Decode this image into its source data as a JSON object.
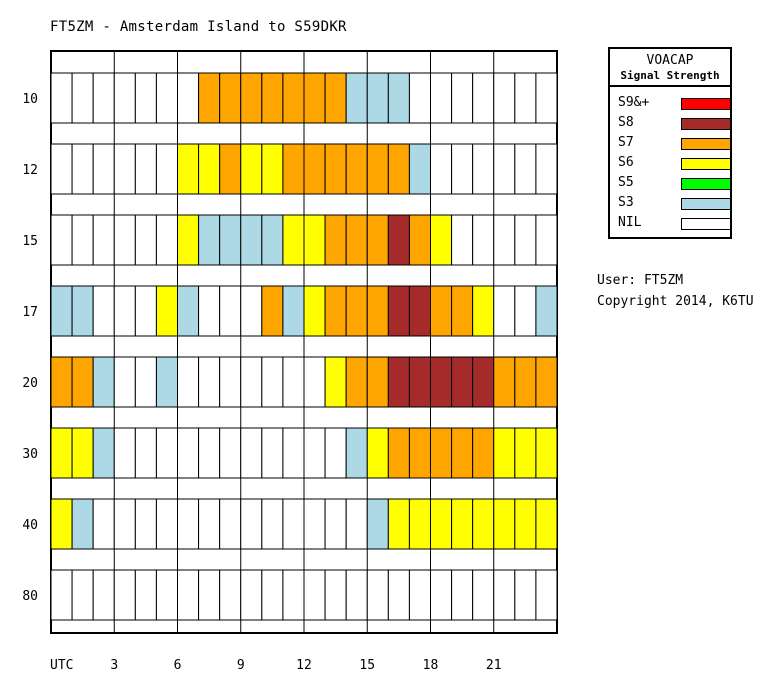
{
  "title": "FT5ZM - Amsterdam Island to S59DKR",
  "legend": {
    "title": "VOACAP",
    "subtitle": "Signal Strength",
    "items": [
      {
        "label": "S9&+",
        "color": "#ff0000"
      },
      {
        "label": "S8",
        "color": "#a52a2a"
      },
      {
        "label": "S7",
        "color": "#ffa500"
      },
      {
        "label": "S6",
        "color": "#ffff00"
      },
      {
        "label": "S5",
        "color": "#00ff00"
      },
      {
        "label": "S3",
        "color": "#add8e6"
      },
      {
        "label": "NIL",
        "color": "#ffffff"
      }
    ]
  },
  "user_line": "User: FT5ZM",
  "copyright_line": "Copyright 2014, K6TU",
  "chart_data": {
    "type": "heatmap",
    "title": "FT5ZM - Amsterdam Island to S59DKR",
    "xlabel": "UTC",
    "x_ticks": [
      "3",
      "6",
      "9",
      "12",
      "15",
      "18",
      "21"
    ],
    "hours": [
      0,
      1,
      2,
      3,
      4,
      5,
      6,
      7,
      8,
      9,
      10,
      11,
      12,
      13,
      14,
      15,
      16,
      17,
      18,
      19,
      20,
      21,
      22,
      23
    ],
    "bands": [
      "10",
      "12",
      "15",
      "17",
      "20",
      "30",
      "40",
      "80"
    ],
    "levels": [
      "NIL",
      "S3",
      "S5",
      "S6",
      "S7",
      "S8",
      "S9&+"
    ],
    "colors": {
      "NIL": "#ffffff",
      "S3": "#add8e6",
      "S5": "#00ff00",
      "S6": "#ffff00",
      "S7": "#ffa500",
      "S8": "#a52a2a",
      "S9&+": "#ff0000"
    },
    "values": [
      [
        "NIL",
        "NIL",
        "NIL",
        "NIL",
        "NIL",
        "NIL",
        "NIL",
        "S7",
        "S7",
        "S7",
        "S7",
        "S7",
        "S7",
        "S7",
        "S3",
        "S3",
        "S3",
        "NIL",
        "NIL",
        "NIL",
        "NIL",
        "NIL",
        "NIL",
        "NIL"
      ],
      [
        "NIL",
        "NIL",
        "NIL",
        "NIL",
        "NIL",
        "NIL",
        "S6",
        "S6",
        "S7",
        "S6",
        "S6",
        "S7",
        "S7",
        "S7",
        "S7",
        "S7",
        "S7",
        "S3",
        "NIL",
        "NIL",
        "NIL",
        "NIL",
        "NIL",
        "NIL"
      ],
      [
        "NIL",
        "NIL",
        "NIL",
        "NIL",
        "NIL",
        "NIL",
        "S6",
        "S3",
        "S3",
        "S3",
        "S3",
        "S6",
        "S6",
        "S7",
        "S7",
        "S7",
        "S8",
        "S7",
        "S6",
        "NIL",
        "NIL",
        "NIL",
        "NIL",
        "NIL"
      ],
      [
        "S3",
        "S3",
        "NIL",
        "NIL",
        "NIL",
        "S6",
        "S3",
        "NIL",
        "NIL",
        "NIL",
        "S7",
        "S3",
        "S6",
        "S7",
        "S7",
        "S7",
        "S8",
        "S8",
        "S7",
        "S7",
        "S6",
        "NIL",
        "NIL",
        "S3"
      ],
      [
        "S7",
        "S7",
        "S3",
        "NIL",
        "NIL",
        "S3",
        "NIL",
        "NIL",
        "NIL",
        "NIL",
        "NIL",
        "NIL",
        "NIL",
        "S6",
        "S7",
        "S7",
        "S8",
        "S8",
        "S8",
        "S8",
        "S8",
        "S7",
        "S7",
        "S7"
      ],
      [
        "S6",
        "S6",
        "S3",
        "NIL",
        "NIL",
        "NIL",
        "NIL",
        "NIL",
        "NIL",
        "NIL",
        "NIL",
        "NIL",
        "NIL",
        "NIL",
        "S3",
        "S6",
        "S7",
        "S7",
        "S7",
        "S7",
        "S7",
        "S6",
        "S6",
        "S6"
      ],
      [
        "S6",
        "S3",
        "NIL",
        "NIL",
        "NIL",
        "NIL",
        "NIL",
        "NIL",
        "NIL",
        "NIL",
        "NIL",
        "NIL",
        "NIL",
        "NIL",
        "NIL",
        "S3",
        "S6",
        "S6",
        "S6",
        "S6",
        "S6",
        "S6",
        "S6",
        "S6"
      ],
      [
        "NIL",
        "NIL",
        "NIL",
        "NIL",
        "NIL",
        "NIL",
        "NIL",
        "NIL",
        "NIL",
        "NIL",
        "NIL",
        "NIL",
        "NIL",
        "NIL",
        "NIL",
        "NIL",
        "NIL",
        "NIL",
        "NIL",
        "NIL",
        "NIL",
        "NIL",
        "NIL",
        "NIL"
      ]
    ]
  }
}
